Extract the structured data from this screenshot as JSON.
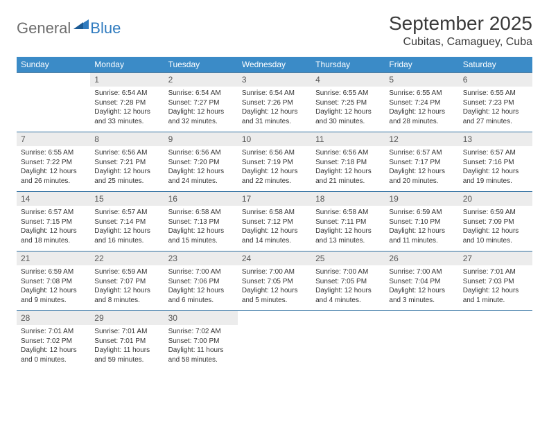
{
  "logo": {
    "text1": "General",
    "text2": "Blue"
  },
  "title": "September 2025",
  "location": "Cubitas, Camaguey, Cuba",
  "colors": {
    "header_bg": "#3b8bc7",
    "header_text": "#ffffff",
    "daynum_bg": "#ececec",
    "row_border": "#2f6fa0",
    "logo_gray": "#6e6e6e",
    "logo_blue": "#2f7bbf"
  },
  "day_headers": [
    "Sunday",
    "Monday",
    "Tuesday",
    "Wednesday",
    "Thursday",
    "Friday",
    "Saturday"
  ],
  "weeks": [
    [
      {
        "n": "",
        "sr": "",
        "ss": "",
        "dl": ""
      },
      {
        "n": "1",
        "sr": "6:54 AM",
        "ss": "7:28 PM",
        "dl": "12 hours and 33 minutes."
      },
      {
        "n": "2",
        "sr": "6:54 AM",
        "ss": "7:27 PM",
        "dl": "12 hours and 32 minutes."
      },
      {
        "n": "3",
        "sr": "6:54 AM",
        "ss": "7:26 PM",
        "dl": "12 hours and 31 minutes."
      },
      {
        "n": "4",
        "sr": "6:55 AM",
        "ss": "7:25 PM",
        "dl": "12 hours and 30 minutes."
      },
      {
        "n": "5",
        "sr": "6:55 AM",
        "ss": "7:24 PM",
        "dl": "12 hours and 28 minutes."
      },
      {
        "n": "6",
        "sr": "6:55 AM",
        "ss": "7:23 PM",
        "dl": "12 hours and 27 minutes."
      }
    ],
    [
      {
        "n": "7",
        "sr": "6:55 AM",
        "ss": "7:22 PM",
        "dl": "12 hours and 26 minutes."
      },
      {
        "n": "8",
        "sr": "6:56 AM",
        "ss": "7:21 PM",
        "dl": "12 hours and 25 minutes."
      },
      {
        "n": "9",
        "sr": "6:56 AM",
        "ss": "7:20 PM",
        "dl": "12 hours and 24 minutes."
      },
      {
        "n": "10",
        "sr": "6:56 AM",
        "ss": "7:19 PM",
        "dl": "12 hours and 22 minutes."
      },
      {
        "n": "11",
        "sr": "6:56 AM",
        "ss": "7:18 PM",
        "dl": "12 hours and 21 minutes."
      },
      {
        "n": "12",
        "sr": "6:57 AM",
        "ss": "7:17 PM",
        "dl": "12 hours and 20 minutes."
      },
      {
        "n": "13",
        "sr": "6:57 AM",
        "ss": "7:16 PM",
        "dl": "12 hours and 19 minutes."
      }
    ],
    [
      {
        "n": "14",
        "sr": "6:57 AM",
        "ss": "7:15 PM",
        "dl": "12 hours and 18 minutes."
      },
      {
        "n": "15",
        "sr": "6:57 AM",
        "ss": "7:14 PM",
        "dl": "12 hours and 16 minutes."
      },
      {
        "n": "16",
        "sr": "6:58 AM",
        "ss": "7:13 PM",
        "dl": "12 hours and 15 minutes."
      },
      {
        "n": "17",
        "sr": "6:58 AM",
        "ss": "7:12 PM",
        "dl": "12 hours and 14 minutes."
      },
      {
        "n": "18",
        "sr": "6:58 AM",
        "ss": "7:11 PM",
        "dl": "12 hours and 13 minutes."
      },
      {
        "n": "19",
        "sr": "6:59 AM",
        "ss": "7:10 PM",
        "dl": "12 hours and 11 minutes."
      },
      {
        "n": "20",
        "sr": "6:59 AM",
        "ss": "7:09 PM",
        "dl": "12 hours and 10 minutes."
      }
    ],
    [
      {
        "n": "21",
        "sr": "6:59 AM",
        "ss": "7:08 PM",
        "dl": "12 hours and 9 minutes."
      },
      {
        "n": "22",
        "sr": "6:59 AM",
        "ss": "7:07 PM",
        "dl": "12 hours and 8 minutes."
      },
      {
        "n": "23",
        "sr": "7:00 AM",
        "ss": "7:06 PM",
        "dl": "12 hours and 6 minutes."
      },
      {
        "n": "24",
        "sr": "7:00 AM",
        "ss": "7:05 PM",
        "dl": "12 hours and 5 minutes."
      },
      {
        "n": "25",
        "sr": "7:00 AM",
        "ss": "7:05 PM",
        "dl": "12 hours and 4 minutes."
      },
      {
        "n": "26",
        "sr": "7:00 AM",
        "ss": "7:04 PM",
        "dl": "12 hours and 3 minutes."
      },
      {
        "n": "27",
        "sr": "7:01 AM",
        "ss": "7:03 PM",
        "dl": "12 hours and 1 minute."
      }
    ],
    [
      {
        "n": "28",
        "sr": "7:01 AM",
        "ss": "7:02 PM",
        "dl": "12 hours and 0 minutes."
      },
      {
        "n": "29",
        "sr": "7:01 AM",
        "ss": "7:01 PM",
        "dl": "11 hours and 59 minutes."
      },
      {
        "n": "30",
        "sr": "7:02 AM",
        "ss": "7:00 PM",
        "dl": "11 hours and 58 minutes."
      },
      {
        "n": "",
        "sr": "",
        "ss": "",
        "dl": ""
      },
      {
        "n": "",
        "sr": "",
        "ss": "",
        "dl": ""
      },
      {
        "n": "",
        "sr": "",
        "ss": "",
        "dl": ""
      },
      {
        "n": "",
        "sr": "",
        "ss": "",
        "dl": ""
      }
    ]
  ],
  "labels": {
    "sunrise": "Sunrise:",
    "sunset": "Sunset:",
    "daylight": "Daylight:"
  }
}
